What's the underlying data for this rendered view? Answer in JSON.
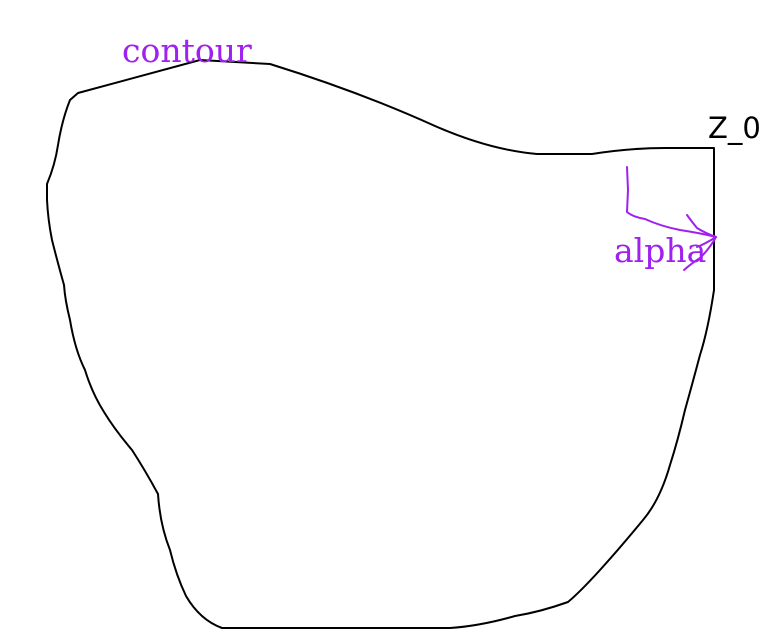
{
  "diagram": {
    "labels": {
      "contour": "contour",
      "alpha": "alpha",
      "z0": "Z_0"
    },
    "colors": {
      "contour_stroke": "#000000",
      "annotation": "#a020f0",
      "z0_text": "#000000",
      "background": "#ffffff"
    }
  }
}
